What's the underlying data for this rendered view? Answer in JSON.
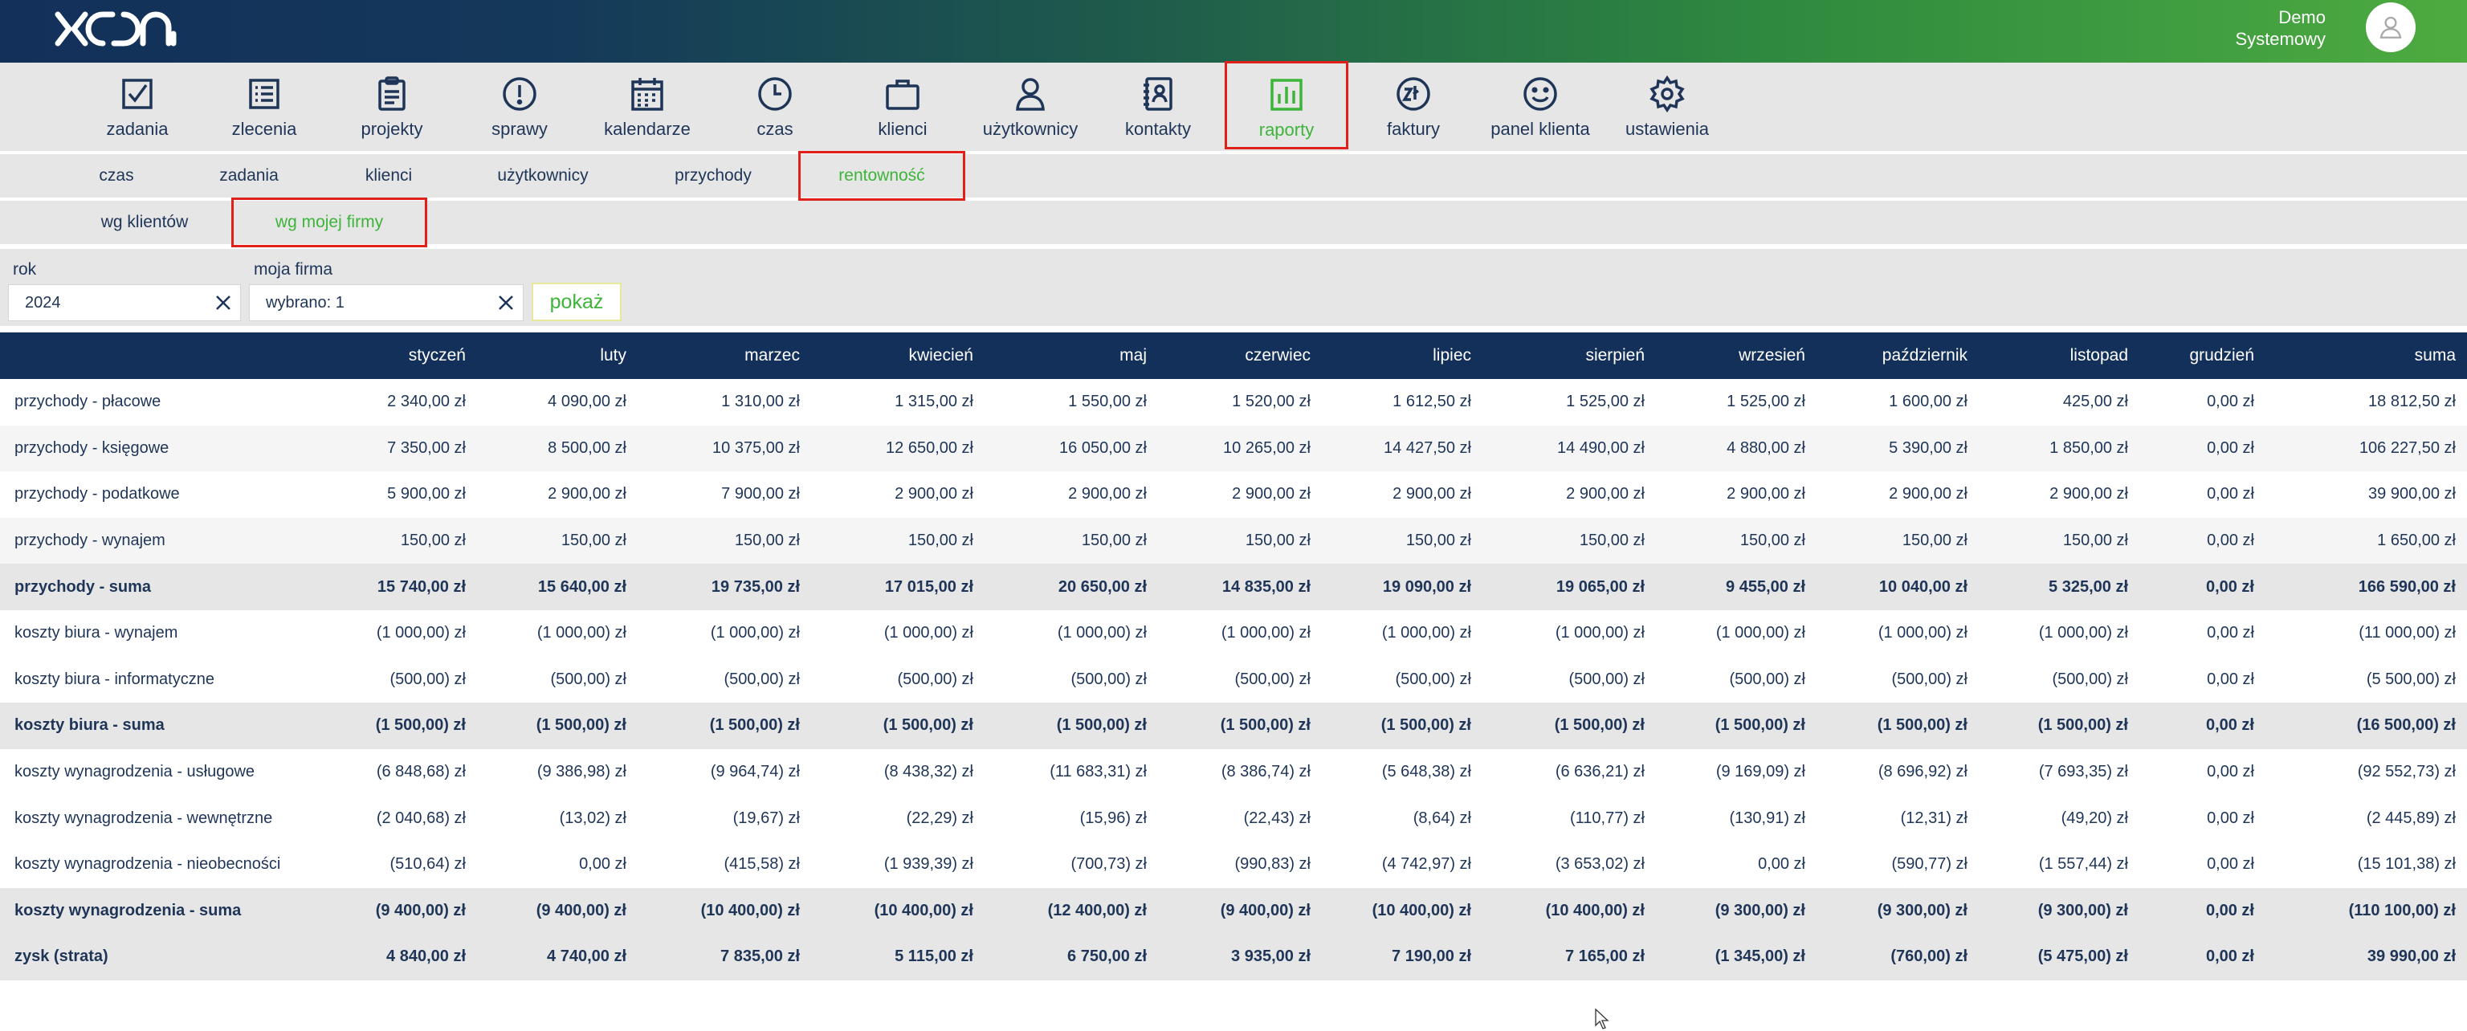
{
  "header": {
    "user_line1": "Demo",
    "user_line2": "Systemowy",
    "logo_icon": "xon-logo",
    "avatar_icon": "user-icon"
  },
  "nav": [
    {
      "label": "zadania",
      "icon": "checkbox-icon"
    },
    {
      "label": "zlecenia",
      "icon": "list-icon"
    },
    {
      "label": "projekty",
      "icon": "clipboard-icon"
    },
    {
      "label": "sprawy",
      "icon": "alert-icon"
    },
    {
      "label": "kalendarze",
      "icon": "calendar-icon"
    },
    {
      "label": "czas",
      "icon": "clock-icon"
    },
    {
      "label": "klienci",
      "icon": "briefcase-icon"
    },
    {
      "label": "użytkownicy",
      "icon": "person-icon"
    },
    {
      "label": "kontakty",
      "icon": "contacts-icon"
    },
    {
      "label": "raporty",
      "icon": "chart-icon",
      "active": true
    },
    {
      "label": "faktury",
      "icon": "zloty-icon"
    },
    {
      "label": "panel klienta",
      "icon": "smile-icon"
    },
    {
      "label": "ustawienia",
      "icon": "gear-icon"
    }
  ],
  "subtabs": [
    "czas",
    "zadania",
    "klienci",
    "użytkownicy",
    "przychody",
    "rentowność"
  ],
  "subtabs2": [
    "wg klientów",
    "wg mojej firmy"
  ],
  "filters": {
    "year_label": "rok",
    "year_value": "2024",
    "firm_label": "moja firma",
    "firm_value": "wybrano: 1",
    "show_button": "pokaż"
  },
  "table": {
    "columns": [
      "styczeń",
      "luty",
      "marzec",
      "kwiecień",
      "maj",
      "czerwiec",
      "lipiec",
      "sierpień",
      "wrzesień",
      "październik",
      "listopad",
      "grudzień",
      "suma"
    ],
    "rows": [
      {
        "label": "przychody - płacowe",
        "style": "plain",
        "values": [
          "2 340,00 zł",
          "4 090,00 zł",
          "1 310,00 zł",
          "1 315,00 zł",
          "1 550,00 zł",
          "1 520,00 zł",
          "1 612,50 zł",
          "1 525,00 zł",
          "1 525,00 zł",
          "1 600,00 zł",
          "425,00 zł",
          "0,00 zł",
          "18 812,50 zł"
        ]
      },
      {
        "label": "przychody - księgowe",
        "style": "alt",
        "values": [
          "7 350,00 zł",
          "8 500,00 zł",
          "10 375,00 zł",
          "12 650,00 zł",
          "16 050,00 zł",
          "10 265,00 zł",
          "14 427,50 zł",
          "14 490,00 zł",
          "4 880,00 zł",
          "5 390,00 zł",
          "1 850,00 zł",
          "0,00 zł",
          "106 227,50 zł"
        ]
      },
      {
        "label": "przychody - podatkowe",
        "style": "plain",
        "values": [
          "5 900,00 zł",
          "2 900,00 zł",
          "7 900,00 zł",
          "2 900,00 zł",
          "2 900,00 zł",
          "2 900,00 zł",
          "2 900,00 zł",
          "2 900,00 zł",
          "2 900,00 zł",
          "2 900,00 zł",
          "2 900,00 zł",
          "0,00 zł",
          "39 900,00 zł"
        ]
      },
      {
        "label": "przychody - wynajem",
        "style": "alt",
        "values": [
          "150,00 zł",
          "150,00 zł",
          "150,00 zł",
          "150,00 zł",
          "150,00 zł",
          "150,00 zł",
          "150,00 zł",
          "150,00 zł",
          "150,00 zł",
          "150,00 zł",
          "150,00 zł",
          "0,00 zł",
          "1 650,00 zł"
        ]
      },
      {
        "label": "przychody - suma",
        "style": "sum",
        "values": [
          "15 740,00 zł",
          "15 640,00 zł",
          "19 735,00 zł",
          "17 015,00 zł",
          "20 650,00 zł",
          "14 835,00 zł",
          "19 090,00 zł",
          "19 065,00 zł",
          "9 455,00 zł",
          "10 040,00 zł",
          "5 325,00 zł",
          "0,00 zł",
          "166 590,00 zł"
        ]
      },
      {
        "label": "koszty biura - wynajem",
        "style": "plain",
        "values": [
          "(1 000,00) zł",
          "(1 000,00) zł",
          "(1 000,00) zł",
          "(1 000,00) zł",
          "(1 000,00) zł",
          "(1 000,00) zł",
          "(1 000,00) zł",
          "(1 000,00) zł",
          "(1 000,00) zł",
          "(1 000,00) zł",
          "(1 000,00) zł",
          "0,00 zł",
          "(11 000,00) zł"
        ]
      },
      {
        "label": "koszty biura - informatyczne",
        "style": "plain",
        "values": [
          "(500,00) zł",
          "(500,00) zł",
          "(500,00) zł",
          "(500,00) zł",
          "(500,00) zł",
          "(500,00) zł",
          "(500,00) zł",
          "(500,00) zł",
          "(500,00) zł",
          "(500,00) zł",
          "(500,00) zł",
          "0,00 zł",
          "(5 500,00) zł"
        ]
      },
      {
        "label": "koszty biura - suma",
        "style": "sum",
        "values": [
          "(1 500,00) zł",
          "(1 500,00) zł",
          "(1 500,00) zł",
          "(1 500,00) zł",
          "(1 500,00) zł",
          "(1 500,00) zł",
          "(1 500,00) zł",
          "(1 500,00) zł",
          "(1 500,00) zł",
          "(1 500,00) zł",
          "(1 500,00) zł",
          "0,00 zł",
          "(16 500,00) zł"
        ]
      },
      {
        "label": "koszty wynagrodzenia - usługowe",
        "style": "plain",
        "values": [
          "(6 848,68) zł",
          "(9 386,98) zł",
          "(9 964,74) zł",
          "(8 438,32) zł",
          "(11 683,31) zł",
          "(8 386,74) zł",
          "(5 648,38) zł",
          "(6 636,21) zł",
          "(9 169,09) zł",
          "(8 696,92) zł",
          "(7 693,35) zł",
          "0,00 zł",
          "(92 552,73) zł"
        ]
      },
      {
        "label": "koszty wynagrodzenia - wewnętrzne",
        "style": "plain",
        "values": [
          "(2 040,68) zł",
          "(13,02) zł",
          "(19,67) zł",
          "(22,29) zł",
          "(15,96) zł",
          "(22,43) zł",
          "(8,64) zł",
          "(110,77) zł",
          "(130,91) zł",
          "(12,31) zł",
          "(49,20) zł",
          "0,00 zł",
          "(2 445,89) zł"
        ]
      },
      {
        "label": "koszty wynagrodzenia - nieobecności",
        "style": "plain",
        "values": [
          "(510,64) zł",
          "0,00 zł",
          "(415,58) zł",
          "(1 939,39) zł",
          "(700,73) zł",
          "(990,83) zł",
          "(4 742,97) zł",
          "(3 653,02) zł",
          "0,00 zł",
          "(590,77) zł",
          "(1 557,44) zł",
          "0,00 zł",
          "(15 101,38) zł"
        ]
      },
      {
        "label": "koszty wynagrodzenia - suma",
        "style": "sum",
        "values": [
          "(9 400,00) zł",
          "(9 400,00) zł",
          "(10 400,00) zł",
          "(10 400,00) zł",
          "(12 400,00) zł",
          "(9 400,00) zł",
          "(10 400,00) zł",
          "(10 400,00) zł",
          "(9 300,00) zł",
          "(9 300,00) zł",
          "(9 300,00) zł",
          "0,00 zł",
          "(110 100,00) zł"
        ]
      },
      {
        "label": "zysk (strata)",
        "style": "sum",
        "values": [
          "4 840,00 zł",
          "4 740,00 zł",
          "7 835,00 zł",
          "5 115,00 zł",
          "6 750,00 zł",
          "3 935,00 zł",
          "7 190,00 zł",
          "7 165,00 zł",
          "(1 345,00) zł",
          "(760,00) zł",
          "(5 475,00) zł",
          "0,00 zł",
          "39 990,00 zł"
        ]
      }
    ]
  },
  "colors": {
    "navy": "#13305a",
    "green_accent": "#3db43a",
    "highlight_border": "#e0201b"
  }
}
